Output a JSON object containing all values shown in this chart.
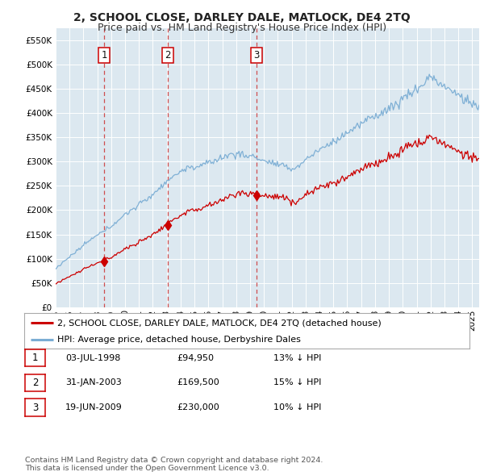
{
  "title": "2, SCHOOL CLOSE, DARLEY DALE, MATLOCK, DE4 2TQ",
  "subtitle": "Price paid vs. HM Land Registry's House Price Index (HPI)",
  "ylim": [
    0,
    575000
  ],
  "yticks": [
    0,
    50000,
    100000,
    150000,
    200000,
    250000,
    300000,
    350000,
    400000,
    450000,
    500000,
    550000
  ],
  "xlim_start": 1995.0,
  "xlim_end": 2025.5,
  "background_color": "#ffffff",
  "plot_bg_color": "#dce8f0",
  "grid_color": "#ffffff",
  "hpi_color": "#7aadd4",
  "price_color": "#cc0000",
  "sale_marker_color": "#cc0000",
  "dashed_line_color": "#cc3333",
  "legend_label_price": "2, SCHOOL CLOSE, DARLEY DALE, MATLOCK, DE4 2TQ (detached house)",
  "legend_label_hpi": "HPI: Average price, detached house, Derbyshire Dales",
  "sale_dates": [
    1998.5,
    2003.08,
    2009.46
  ],
  "sale_prices": [
    94950,
    169500,
    230000
  ],
  "sale_labels": [
    "1",
    "2",
    "3"
  ],
  "sale_date_str": [
    "03-JUL-1998",
    "31-JAN-2003",
    "19-JUN-2009"
  ],
  "sale_price_str": [
    "£94,950",
    "£169,500",
    "£230,000"
  ],
  "sale_hpi_str": [
    "13% ↓ HPI",
    "15% ↓ HPI",
    "10% ↓ HPI"
  ],
  "footnote": "Contains HM Land Registry data © Crown copyright and database right 2024.\nThis data is licensed under the Open Government Licence v3.0.",
  "title_fontsize": 10,
  "subtitle_fontsize": 9,
  "tick_fontsize": 7.5,
  "legend_fontsize": 8,
  "table_fontsize": 8
}
